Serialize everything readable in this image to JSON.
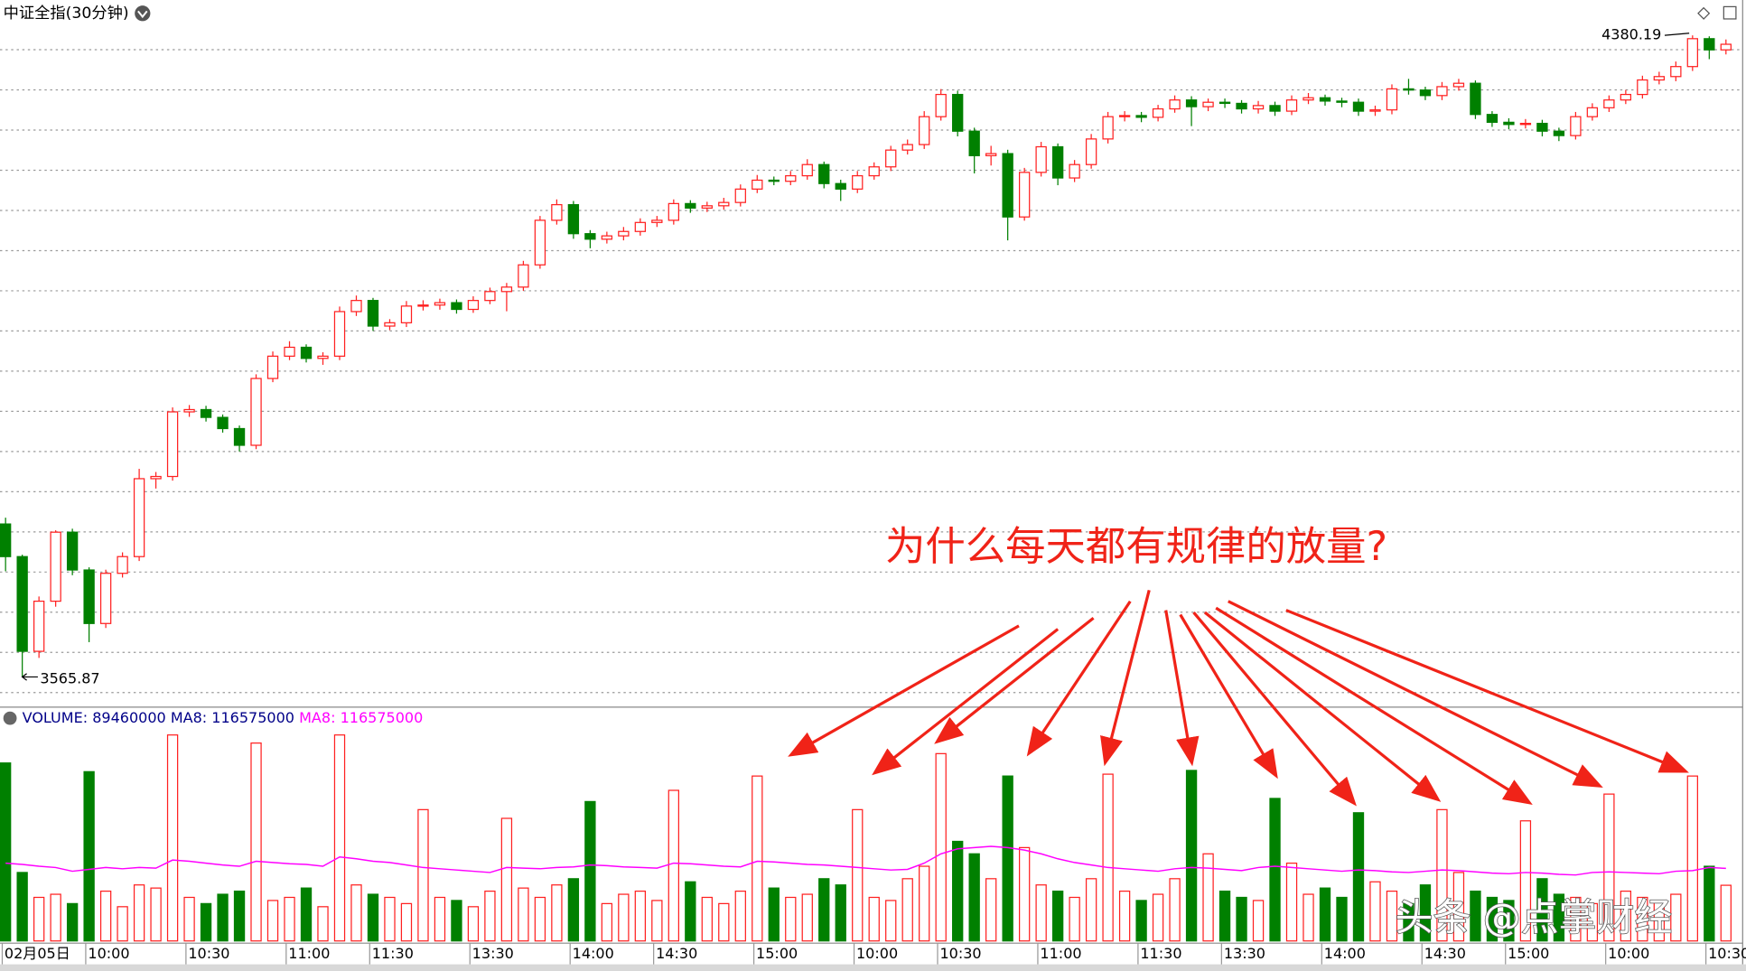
{
  "title": "中证全指(30分钟)",
  "annotation": "为什么每天都有规律的放量?",
  "watermark": "头条 @点掌财经",
  "chart_data": {
    "type": "candlestick",
    "up_color": "#ff2020",
    "down_color": "#008000",
    "ylim": [
      3529,
      4394
    ],
    "ygrid": [
      3546,
      3597,
      3648,
      3699,
      3750,
      3801,
      3852,
      3903,
      3954,
      4005,
      4056,
      4107,
      4158,
      4209,
      4260,
      4311,
      4362
    ],
    "categories": [
      "02月05日",
      null,
      null,
      null,
      null,
      "10:00",
      null,
      null,
      null,
      null,
      null,
      "10:30",
      null,
      null,
      null,
      null,
      null,
      "11:00",
      null,
      null,
      null,
      null,
      "11:30",
      null,
      null,
      null,
      null,
      null,
      "13:30",
      null,
      null,
      null,
      null,
      null,
      "14:00",
      null,
      null,
      null,
      null,
      "14:30",
      null,
      null,
      null,
      null,
      null,
      "15:00",
      null,
      null,
      null,
      null,
      null,
      "10:00",
      null,
      null,
      null,
      null,
      "10:30",
      null,
      null,
      null,
      null,
      null,
      "11:00",
      null,
      null,
      null,
      null,
      null,
      "11:30",
      null,
      null,
      null,
      null,
      "13:30",
      null,
      null,
      null,
      null,
      null,
      "14:00",
      null,
      null,
      null,
      null,
      null,
      "14:30",
      null,
      null,
      null,
      null,
      "15:00",
      null,
      null,
      null,
      null,
      null,
      "10:00",
      null,
      null,
      null,
      null,
      null,
      "10:30",
      null
    ],
    "candles": [
      [
        3760.0,
        3768.0,
        3700.0,
        3718.6
      ],
      [
        3718.6,
        3721.0,
        3565.87,
        3598.4
      ],
      [
        3598.4,
        3668.0,
        3590.0,
        3662.0
      ],
      [
        3662.0,
        3752.0,
        3655.0,
        3749.6
      ],
      [
        3749.6,
        3754.0,
        3695.0,
        3701.6
      ],
      [
        3701.6,
        3705.0,
        3610.0,
        3633.7
      ],
      [
        3633.7,
        3702.0,
        3628.0,
        3697.4
      ],
      [
        3697.4,
        3724.0,
        3692.0,
        3718.6
      ],
      [
        3718.6,
        3830.0,
        3713.0,
        3817.5
      ],
      [
        3817.5,
        3826.0,
        3805.0,
        3820.3
      ],
      [
        3820.3,
        3908.0,
        3815.0,
        3902.3
      ],
      [
        3902.3,
        3911.0,
        3896.0,
        3905.2
      ],
      [
        3905.2,
        3910.0,
        3890.0,
        3895.3
      ],
      [
        3895.3,
        3899.0,
        3876.0,
        3881.1
      ],
      [
        3881.1,
        3885.0,
        3852.0,
        3859.9
      ],
      [
        3859.9,
        3950.0,
        3855.0,
        3944.7
      ],
      [
        3944.7,
        3979.0,
        3940.0,
        3973.0
      ],
      [
        3973.0,
        3992.0,
        3968.0,
        3984.3
      ],
      [
        3984.3,
        3988.0,
        3965.0,
        3970.2
      ],
      [
        3970.2,
        3978.0,
        3962.0,
        3973.0
      ],
      [
        3973.0,
        4036.0,
        3968.0,
        4029.6
      ],
      [
        4029.6,
        4050.0,
        4024.0,
        4043.7
      ],
      [
        4043.7,
        4047.0,
        4005.0,
        4011.2
      ],
      [
        4011.2,
        4020.0,
        4006.0,
        4015.4
      ],
      [
        4015.4,
        4043.0,
        4010.0,
        4036.6
      ],
      [
        4036.6,
        4044.0,
        4031.0,
        4037.9
      ],
      [
        4037.9,
        4046.0,
        4032.0,
        4040.9
      ],
      [
        4040.9,
        4045.0,
        4027.0,
        4032.4
      ],
      [
        4032.4,
        4049.0,
        4028.0,
        4043.7
      ],
      [
        4043.7,
        4060.0,
        4039.0,
        4055.0
      ],
      [
        4055.0,
        4066.0,
        4030.0,
        4060.7
      ],
      [
        4060.7,
        4094.0,
        4056.0,
        4088.9
      ],
      [
        4088.9,
        4151.0,
        4084.0,
        4145.5
      ],
      [
        4145.5,
        4172.0,
        4140.0,
        4165.3
      ],
      [
        4165.3,
        4170.0,
        4122.0,
        4128.5
      ],
      [
        4128.5,
        4133.0,
        4110.0,
        4121.5
      ],
      [
        4121.5,
        4131.0,
        4116.0,
        4125.7
      ],
      [
        4125.7,
        4137.0,
        4120.0,
        4131.3
      ],
      [
        4131.3,
        4148.0,
        4126.0,
        4142.7
      ],
      [
        4142.7,
        4151.0,
        4137.0,
        4145.5
      ],
      [
        4145.5,
        4172.0,
        4140.0,
        4166.7
      ],
      [
        4166.7,
        4171.0,
        4155.0,
        4161.0
      ],
      [
        4161.0,
        4169.0,
        4156.0,
        4163.9
      ],
      [
        4163.9,
        4174.0,
        4159.0,
        4168.1
      ],
      [
        4168.1,
        4191.0,
        4163.0,
        4185.1
      ],
      [
        4185.1,
        4203.0,
        4180.0,
        4196.4
      ],
      [
        4196.4,
        4201.0,
        4190.0,
        4195.0
      ],
      [
        4195.0,
        4208.0,
        4190.0,
        4202.0
      ],
      [
        4202.0,
        4223.0,
        4197.0,
        4216.2
      ],
      [
        4216.2,
        4220.0,
        4186.0,
        4192.1
      ],
      [
        4192.1,
        4197.0,
        4170.0,
        4185.1
      ],
      [
        4185.1,
        4208.0,
        4180.0,
        4202.0
      ],
      [
        4202.0,
        4219.0,
        4197.0,
        4213.3
      ],
      [
        4213.3,
        4240.0,
        4208.0,
        4234.6
      ],
      [
        4234.6,
        4248.0,
        4229.0,
        4241.6
      ],
      [
        4241.6,
        4284.0,
        4236.0,
        4277.0
      ],
      [
        4277.0,
        4312.0,
        4272.0,
        4305.2
      ],
      [
        4305.2,
        4310.0,
        4252.0,
        4258.6
      ],
      [
        4258.6,
        4263.0,
        4205.0,
        4227.5
      ],
      [
        4227.5,
        4240.0,
        4215.0,
        4230.1
      ],
      [
        4230.1,
        4235.0,
        4120.0,
        4149.7
      ],
      [
        4149.7,
        4212.0,
        4145.0,
        4206.3
      ],
      [
        4206.3,
        4245.0,
        4201.0,
        4238.8
      ],
      [
        4238.8,
        4243.0,
        4190.0,
        4199.2
      ],
      [
        4199.2,
        4222.0,
        4194.0,
        4216.2
      ],
      [
        4216.2,
        4255.0,
        4211.0,
        4248.7
      ],
      [
        4248.7,
        4283.0,
        4243.0,
        4277.0
      ],
      [
        4277.0,
        4284.0,
        4271.0,
        4278.4
      ],
      [
        4278.4,
        4283.0,
        4270.0,
        4276.2
      ],
      [
        4276.2,
        4292.0,
        4271.0,
        4286.9
      ],
      [
        4286.9,
        4304.0,
        4282.0,
        4298.2
      ],
      [
        4298.2,
        4303.0,
        4265.0,
        4289.7
      ],
      [
        4289.7,
        4300.0,
        4284.0,
        4295.3
      ],
      [
        4295.3,
        4300.0,
        4288.0,
        4293.9
      ],
      [
        4293.9,
        4298.0,
        4281.0,
        4286.9
      ],
      [
        4286.9,
        4297.0,
        4281.0,
        4291.1
      ],
      [
        4291.1,
        4296.0,
        4278.0,
        4284.0
      ],
      [
        4284.0,
        4304.0,
        4279.0,
        4298.2
      ],
      [
        4298.2,
        4307.0,
        4293.0,
        4301.0
      ],
      [
        4301.0,
        4305.0,
        4291.0,
        4296.8
      ],
      [
        4296.8,
        4301.0,
        4289.0,
        4295.3
      ],
      [
        4295.3,
        4300.0,
        4278.0,
        4284.0
      ],
      [
        4284.0,
        4291.0,
        4278.0,
        4285.6
      ],
      [
        4285.6,
        4318.0,
        4280.0,
        4312.3
      ],
      [
        4312.3,
        4325.0,
        4305.0,
        4310.8
      ],
      [
        4310.8,
        4315.0,
        4298.0,
        4303.8
      ],
      [
        4303.8,
        4321.0,
        4298.0,
        4315.1
      ],
      [
        4315.1,
        4325.0,
        4310.0,
        4319.4
      ],
      [
        4319.4,
        4323.0,
        4274.0,
        4279.8
      ],
      [
        4279.8,
        4284.0,
        4264.0,
        4269.9
      ],
      [
        4269.9,
        4275.0,
        4261.0,
        4267.1
      ],
      [
        4267.1,
        4274.0,
        4262.0,
        4268.5
      ],
      [
        4268.5,
        4273.0,
        4252.0,
        4258.6
      ],
      [
        4258.6,
        4263.0,
        4246.0,
        4253.0
      ],
      [
        4253.0,
        4283.0,
        4248.0,
        4277.0
      ],
      [
        4277.0,
        4294.0,
        4272.0,
        4288.3
      ],
      [
        4288.3,
        4304.0,
        4283.0,
        4298.2
      ],
      [
        4298.2,
        4311.0,
        4293.0,
        4305.2
      ],
      [
        4305.2,
        4329.0,
        4300.0,
        4323.6
      ],
      [
        4323.6,
        4334.0,
        4318.0,
        4327.9
      ],
      [
        4327.9,
        4347.0,
        4322.0,
        4340.6
      ],
      [
        4340.6,
        4380.19,
        4335.0,
        4376.0
      ],
      [
        4376.0,
        4379.0,
        4350.0,
        4361.8
      ],
      [
        4361.8,
        4375.0,
        4356.0,
        4368.9
      ]
    ],
    "volume": {
      "name": "VOLUME:",
      "ylim": [
        0,
        340000000
      ],
      "values": [
        286000000,
        110000000,
        70000000,
        75000000,
        60000000,
        272000000,
        80000000,
        55000000,
        90000000,
        85000000,
        331000000,
        70000000,
        60000000,
        75000000,
        80000000,
        318000000,
        65000000,
        70000000,
        85000000,
        55000000,
        331000000,
        90000000,
        75000000,
        70000000,
        60000000,
        211000000,
        70000000,
        65000000,
        55000000,
        80000000,
        197000000,
        85000000,
        70000000,
        90000000,
        100000000,
        224000000,
        60000000,
        75000000,
        80000000,
        65000000,
        242000000,
        95000000,
        70000000,
        60000000,
        80000000,
        265000000,
        85000000,
        70000000,
        75000000,
        100000000,
        90000000,
        211000000,
        70000000,
        65000000,
        100000000,
        120000000,
        301000000,
        160000000,
        140000000,
        100000000,
        265000000,
        150000000,
        90000000,
        80000000,
        70000000,
        100000000,
        268000000,
        80000000,
        65000000,
        75000000,
        100000000,
        274000000,
        140000000,
        80000000,
        70000000,
        65000000,
        229000000,
        125000000,
        75000000,
        85000000,
        70000000,
        206000000,
        95000000,
        80000000,
        60000000,
        90000000,
        211000000,
        110000000,
        80000000,
        70000000,
        65000000,
        193000000,
        100000000,
        75000000,
        70000000,
        60000000,
        236000000,
        80000000,
        70000000,
        65000000,
        75000000,
        265000000,
        120000000,
        89460000
      ]
    },
    "ma8": {
      "name": "MA8:",
      "color": "#ff00ff",
      "values": [
        125000000,
        123000000,
        120000000,
        118000000,
        112000000,
        115000000,
        118000000,
        116000000,
        118000000,
        117000000,
        130000000,
        128000000,
        125000000,
        122000000,
        120000000,
        128000000,
        126000000,
        124000000,
        123000000,
        120000000,
        135000000,
        132000000,
        128000000,
        126000000,
        122000000,
        118000000,
        116000000,
        114000000,
        112000000,
        110000000,
        118000000,
        117000000,
        116000000,
        118000000,
        119000000,
        122000000,
        121000000,
        119000000,
        118000000,
        117000000,
        125000000,
        124000000,
        122000000,
        120000000,
        119000000,
        128000000,
        127000000,
        125000000,
        123000000,
        122000000,
        120000000,
        118000000,
        116000000,
        114000000,
        115000000,
        125000000,
        140000000,
        148000000,
        150000000,
        152000000,
        150000000,
        146000000,
        140000000,
        132000000,
        126000000,
        122000000,
        118000000,
        116000000,
        114000000,
        112000000,
        116000000,
        118000000,
        117000000,
        115000000,
        113000000,
        118000000,
        120000000,
        118000000,
        116000000,
        114000000,
        112000000,
        114000000,
        113000000,
        111000000,
        110000000,
        112000000,
        114000000,
        113000000,
        111000000,
        109000000,
        108000000,
        110000000,
        109000000,
        107000000,
        106000000,
        110000000,
        111000000,
        110000000,
        109000000,
        108000000,
        112000000,
        113000000,
        118000000,
        116575000
      ]
    }
  }
}
